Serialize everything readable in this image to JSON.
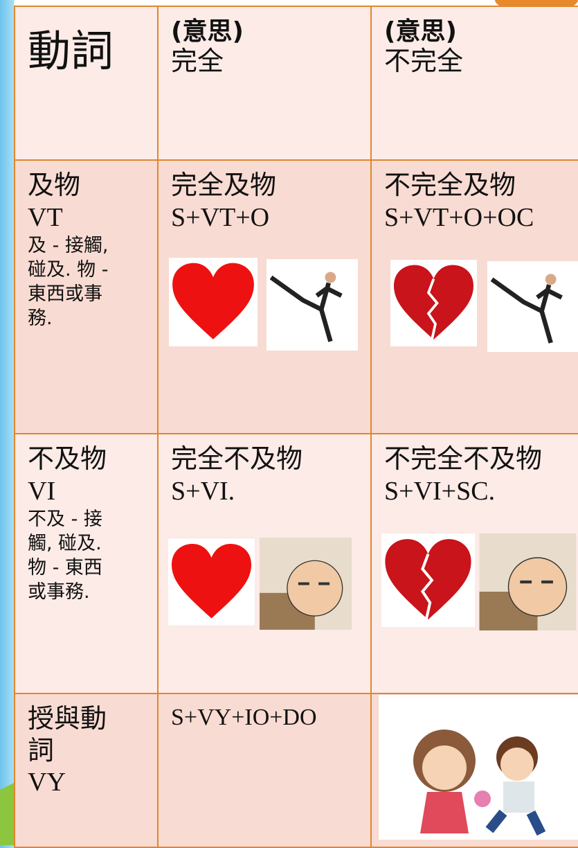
{
  "table": {
    "header": [
      [
        "動詞"
      ],
      [
        "(意思)",
        "完全"
      ],
      [
        "(意思)",
        "不完全"
      ]
    ],
    "rows": [
      [
        {
          "lines": [
            "及物",
            "VT"
          ],
          "note": [
            "及 - 接觸,",
            "碰及. 物 -",
            "東西或事",
            "務."
          ]
        },
        [
          "完全及物",
          "S+VT+O"
        ],
        [
          "不完全及物",
          "S+VT+O+OC"
        ]
      ],
      [
        {
          "lines": [
            "不及物",
            "VI"
          ],
          "note": [
            "不及 - 接",
            "觸, 碰及.",
            "物 - 東西",
            "或事務."
          ]
        },
        [
          "完全不及物",
          "S+VI."
        ],
        [
          "不完全不及物",
          "S+VI+SC."
        ]
      ],
      [
        {
          "lines": [
            "授與動",
            "詞",
            "VY"
          ]
        },
        [
          "S+VY+IO+DO"
        ]
      ]
    ]
  }
}
